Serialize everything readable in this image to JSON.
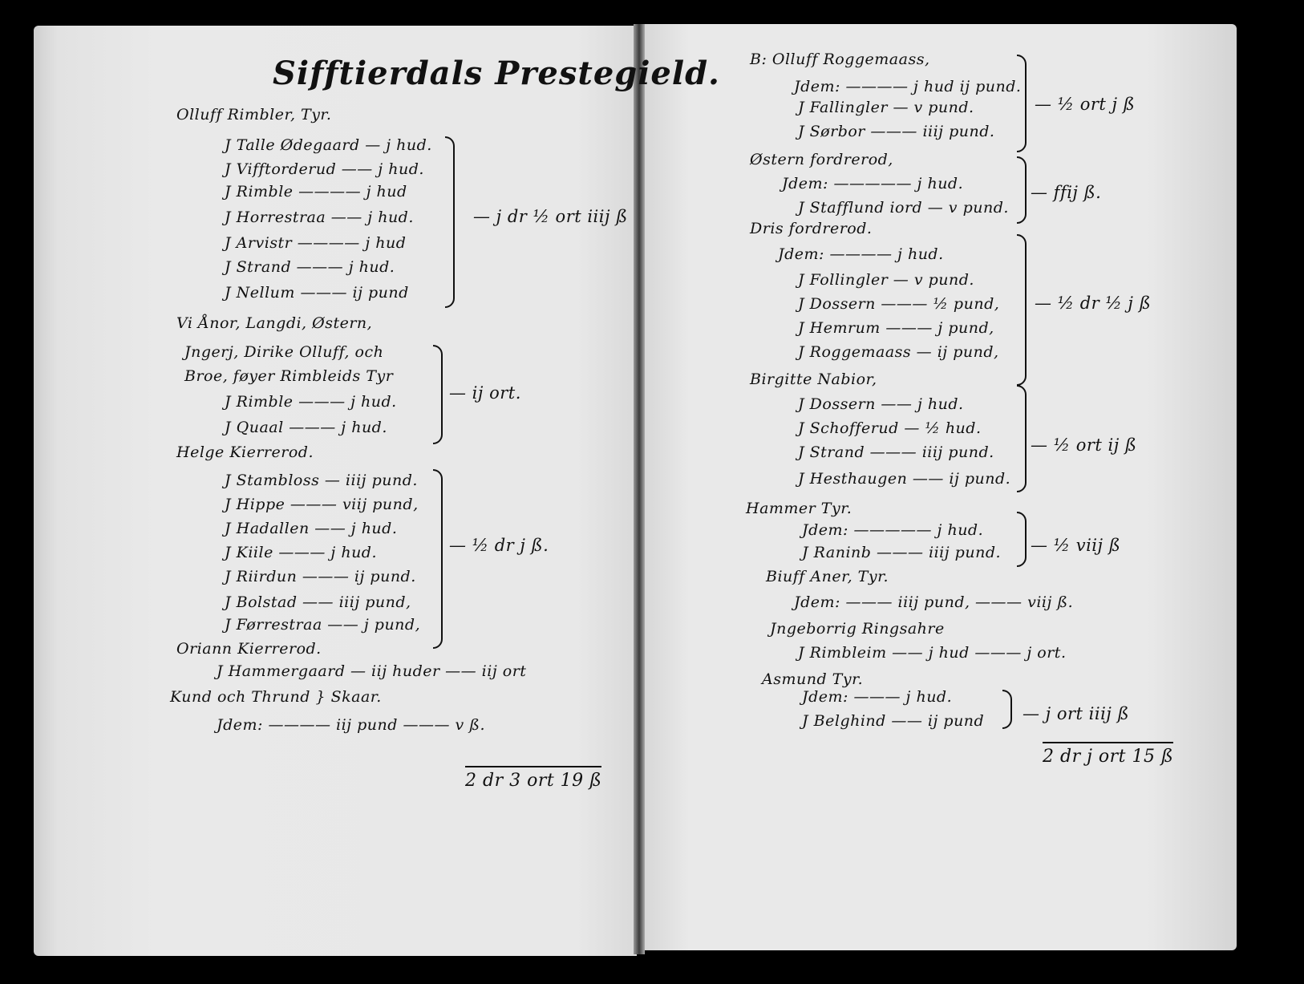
{
  "left_page": {
    "title": "Sifftierdals Prestegield.",
    "lines": [
      "Olluff Rimbler, Tyr.",
      "J Talle Ødegaard — j hud.",
      "J Vifftorderud —— j hud.",
      "J Rimble ———— j hud",
      "J Horrestraa —— j hud.",
      "J Arvistr ———— j hud",
      "J Strand ——— j hud.",
      "J Nellum ——— ij pund",
      "Vi Ånor, Langdi, Østern,",
      "Jngerj, Dirike Olluff, och",
      "Broe, føyer Rimbleids Tyr",
      "J Rimble ——— j hud.",
      "J Quaal ——— j hud.",
      "Helge Kierrerod.",
      "J Stambloss — iiij pund.",
      "J Hippe ——— viij pund,",
      "J Hadallen —— j hud.",
      "J Kiile ——— j hud.",
      "J Riirdun ——— ij pund.",
      "J Bolstad —— iiij pund,",
      "J Førrestraa —— j pund,",
      "Oriann Kierrerod.",
      "J Hammergaard — iij huder —— iij ort",
      "Kund och Thrund } Skaar.",
      "Jdem: ———— iij pund ——— v ß."
    ],
    "totals": [
      "— j dr ½ ort iiij ß",
      "— ij ort.",
      "— ½ dr j ß."
    ],
    "grand_total": "2 dr 3 ort 19 ß"
  },
  "right_page": {
    "lines": [
      "B: Olluff Roggemaass,",
      "Jdem: ———— j hud ij pund.",
      "J Fallingler — v pund.",
      "J Sørbor ——— iiij pund.",
      "Østern fordrerod,",
      "Jdem: ————— j hud.",
      "J Stafflund iord — v pund.",
      "Dris fordrerod.",
      "Jdem: ———— j hud.",
      "J Follingler — v pund.",
      "J Dossern ——— ½ pund,",
      "J Hemrum ——— j pund,",
      "J Roggemaass — ij pund,",
      "Birgitte Nabior,",
      "J Dossern —— j hud.",
      "J Schofferud — ½ hud.",
      "J Strand ——— iiij pund.",
      "J Hesthaugen —— ij pund.",
      "Hammer Tyr.",
      "Jdem: ————— j hud.",
      "J Raninb ——— iiij pund.",
      "Biuff Aner, Tyr.",
      "Jdem: ——— iiij pund, ——— viij ß.",
      "Jngeborrig Ringsahre",
      "J Rimbleim —— j hud ——— j ort.",
      "Asmund Tyr.",
      "Jdem: ——— j hud.",
      "J Belghind —— ij pund"
    ],
    "totals": [
      "— ½ ort j ß",
      "— ffij ß.",
      "— ½ dr ½ j ß",
      "— ½ ort ij ß",
      "— ½ viij ß",
      "— j ort iiij ß"
    ],
    "grand_total": "2 dr j ort 15 ß"
  }
}
